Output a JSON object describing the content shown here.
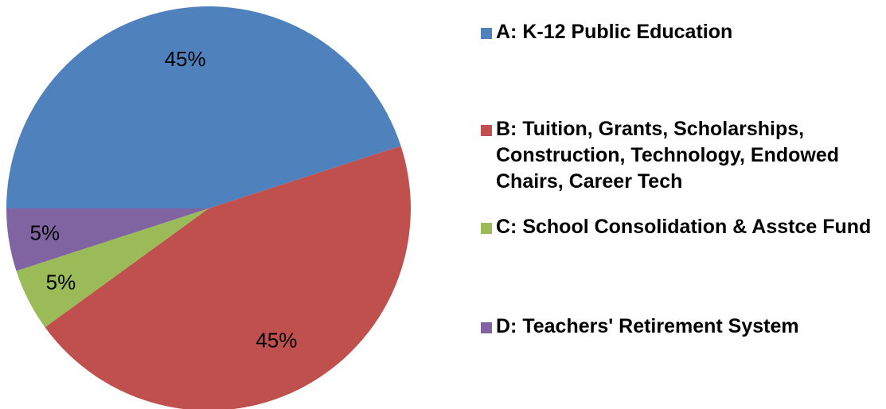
{
  "chart_data": {
    "type": "pie",
    "categories": [
      "A: K-12 Public Education",
      "B: Tuition, Grants, Scholarships, Construction, Technology, Endowed Chairs, Career Tech",
      "C: School Consolidation & Asstce Fund",
      "D: Teachers' Retirement System"
    ],
    "values": [
      45,
      45,
      5,
      5
    ],
    "value_labels": [
      "45%",
      "45%",
      "5%",
      "5%"
    ],
    "colors": [
      "#4f81bd",
      "#c0504d",
      "#9bbb59",
      "#8064a2"
    ],
    "legend": "right"
  }
}
